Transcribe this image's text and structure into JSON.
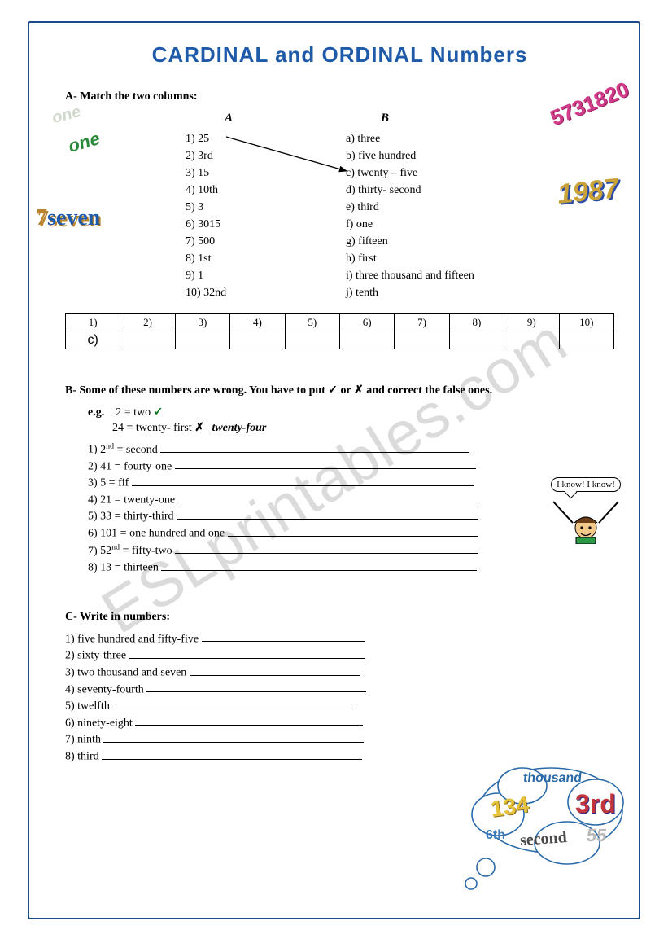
{
  "title": "CARDINAL and ORDINAL Numbers",
  "watermark": "ESLprintables.com",
  "sectionA": {
    "heading": "A- Match the two columns:",
    "colA_label": "A",
    "colB_label": "B",
    "colA": [
      "1) 25",
      "2) 3rd",
      "3) 15",
      "4) 10th",
      "5) 3",
      "6) 3015",
      "7) 500",
      "8) 1st",
      "9) 1",
      "10) 32nd"
    ],
    "colB": [
      "a) three",
      "b) five hundred",
      "c) twenty – five",
      "d) thirty- second",
      "e) third",
      "f) one",
      "g) fifteen",
      "h) first",
      "i) three thousand and fifteen",
      "j) tenth"
    ],
    "grid_headers": [
      "1)",
      "2)",
      "3)",
      "4)",
      "5)",
      "6)",
      "7)",
      "8)",
      "9)",
      "10)"
    ],
    "grid_answers": [
      "c)",
      "",
      "",
      "",
      "",
      "",
      "",
      "",
      "",
      ""
    ]
  },
  "sectionB": {
    "heading": "B- Some of these numbers are wrong. You have to put ✓ or ✗ and correct the false ones.",
    "eg_label": "e.g.",
    "eg1": "2 = two",
    "eg2_left": "24 = twenty- first",
    "eg2_correction": "twenty-four",
    "items": [
      {
        "n": "1)",
        "text_html": "2<sup>nd</sup> = second"
      },
      {
        "n": "2)",
        "text_html": "41 = fourty-one"
      },
      {
        "n": "3)",
        "text_html": "5 = fif"
      },
      {
        "n": "4)",
        "text_html": "21 = twenty-one"
      },
      {
        "n": "5)",
        "text_html": "33 = thirty-third"
      },
      {
        "n": "6)",
        "text_html": "101 = one hundred and one"
      },
      {
        "n": "7)",
        "text_html": "52<sup>nd</sup> = fifty-two"
      },
      {
        "n": "8)",
        "text_html": "13 = thirteen"
      }
    ]
  },
  "sectionC": {
    "heading": "C- Write in numbers:",
    "items": [
      "1) five hundred and fifty-five",
      "2) sixty-three",
      "3) two thousand and seven",
      "4) seventy-fourth",
      "5) twelfth",
      "6) ninety-eight",
      "7) ninth",
      "8) third"
    ]
  },
  "decor": {
    "one1": "one",
    "one2": "one",
    "seven_digit": "7",
    "seven_word": "seven",
    "num_573": "5731820",
    "num_1987": "1987",
    "speech": "I know! I know!",
    "cloud_words": {
      "thousand": "thousand",
      "third": "3rd",
      "num134": "134",
      "sixth": "6th",
      "second": "second",
      "num55": "55"
    }
  },
  "colors": {
    "border": "#1a4a8a",
    "title": "#1e5aa8",
    "deco_green": "#2a8a3a",
    "deco_pink": "#d23a8a",
    "deco_gold": "#c9a23a"
  }
}
